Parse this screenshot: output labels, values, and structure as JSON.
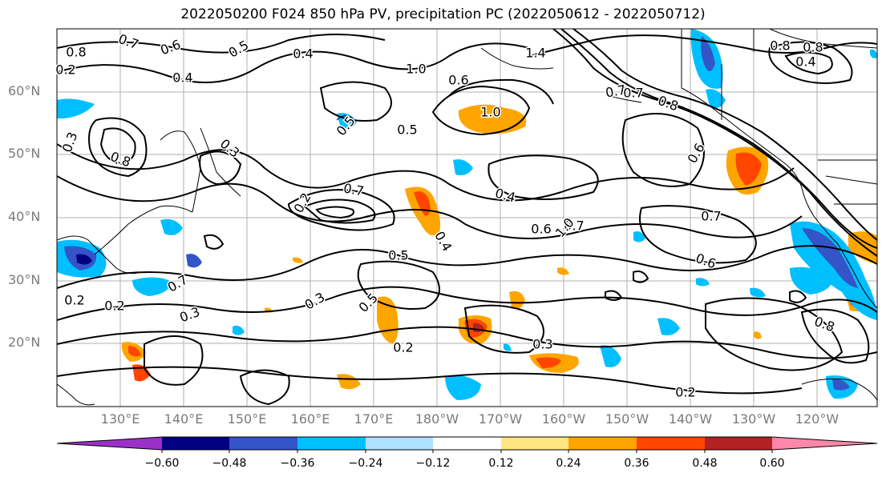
{
  "title": "2022050200 F024 850 hPa PV, precipitation PC (2022050612 - 2022050712)",
  "lat_labels": [
    "60°N",
    "50°N",
    "40°N",
    "30°N",
    "20°N"
  ],
  "lon_labels": [
    "130°E",
    "140°E",
    "150°E",
    "160°E",
    "170°E",
    "180°W",
    "170°W",
    "160°W",
    "150°W",
    "140°W",
    "130°W",
    "120°W"
  ],
  "colorbar": {
    "ticks": [
      "−0.60",
      "−0.48",
      "−0.36",
      "−0.24",
      "−0.12",
      "0.12",
      "0.24",
      "0.36",
      "0.48",
      "0.60"
    ],
    "colors": [
      "#9b30c8",
      "#000080",
      "#3355c8",
      "#00bfff",
      "#b0e0ff",
      "#ffffff",
      "#ffe680",
      "#ffa500",
      "#ff4500",
      "#b22222",
      "#ff88aa"
    ]
  },
  "contour_labels": [
    "0.4",
    "0.5",
    "0.6",
    "0.7",
    "0.8",
    "1.0",
    "0.3",
    "0.2",
    "1.4",
    "0.4",
    "0.6",
    "0.7",
    "0.5",
    "1.0",
    "0.5",
    "0.4",
    "0.7",
    "0.6",
    "0.5",
    "0.4",
    "0.3",
    "0.2",
    "0.3",
    "0.2",
    "0.3",
    "0.2",
    "0.8",
    "0.7",
    "0.7",
    "1.0",
    "0.6",
    "0.8",
    "0.6",
    "0.7",
    "0.4",
    "0.3",
    "0.8",
    "0.5",
    "0.2",
    "0.2",
    "0.7",
    "0.8",
    "0.8"
  ]
}
